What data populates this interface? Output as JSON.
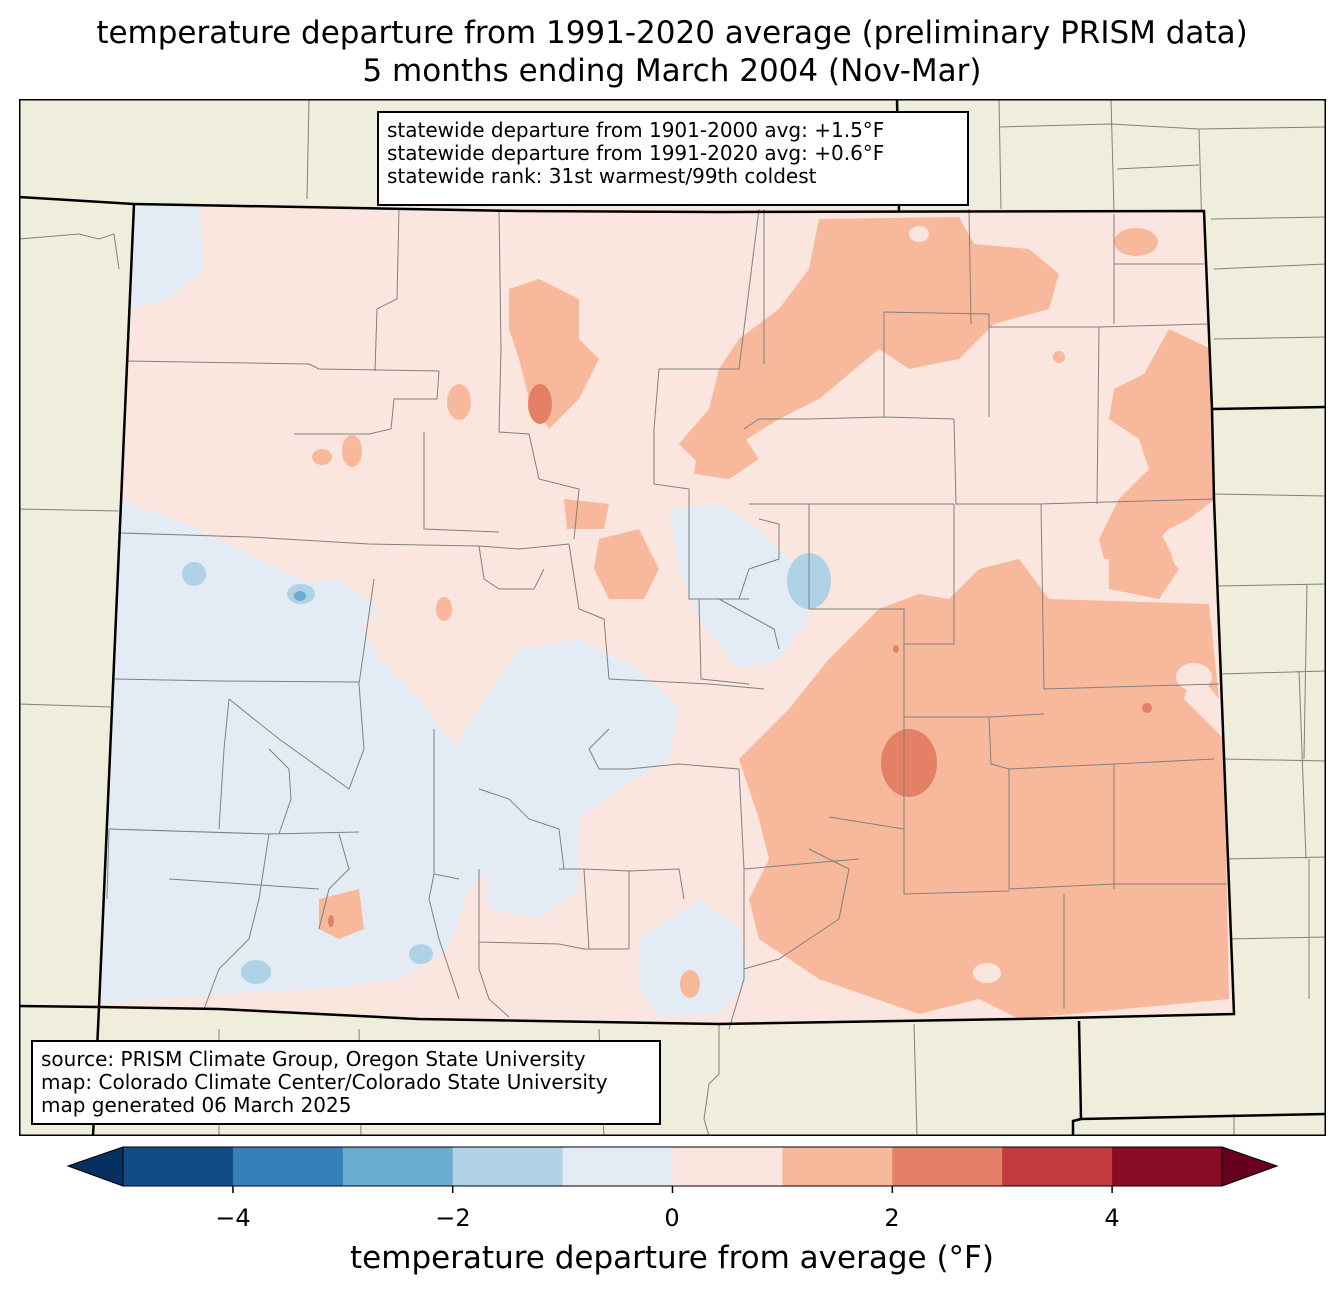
{
  "title": {
    "line1": "temperature departure from 1991-2020 average (preliminary PRISM data)",
    "line2": "5 months ending March 2004 (Nov-Mar)"
  },
  "stats": {
    "line1": "statewide departure from 1901-2000 avg: +1.5°F",
    "line2": "statewide departure from 1991-2020 avg: +0.6°F",
    "line3": "statewide rank: 31st warmest/99th coldest"
  },
  "source": {
    "line1": "source: PRISM Climate Group, Oregon State University",
    "line2": "map: Colorado Climate Center/Colorado State University",
    "line3": "map generated 06 March 2025"
  },
  "colorbar": {
    "label": "temperature departure from average (°F)",
    "ticks": [
      "−4",
      "−2",
      "0",
      "2",
      "4"
    ],
    "levels": [
      -5,
      -4,
      -3,
      -2,
      -1,
      0,
      1,
      2,
      3,
      4,
      5
    ],
    "colors": [
      "#134b87",
      "#3580b9",
      "#6aacd0",
      "#afd2e7",
      "#e3ecf5",
      "#fae6de",
      "#f7b89c",
      "#e48066",
      "#c13a3f",
      "#8a0b25"
    ],
    "under_color": "#053061",
    "over_color": "#67001f"
  },
  "colors": {
    "land_outside": "#efeddb",
    "state_border": "#000000",
    "county_border": "#808080"
  }
}
